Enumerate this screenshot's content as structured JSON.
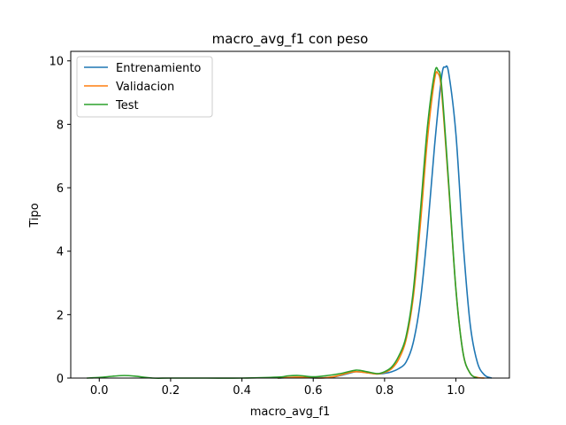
{
  "chart_data": {
    "type": "line",
    "title": "macro_avg_f1 con peso",
    "xlabel": "macro_avg_f1",
    "ylabel": "Tipo",
    "xlim": [
      -0.08,
      1.15
    ],
    "ylim": [
      0,
      10.3
    ],
    "xticks": [
      0.0,
      0.2,
      0.4,
      0.6,
      0.8,
      1.0
    ],
    "xtick_labels": [
      "0.0",
      "0.2",
      "0.4",
      "0.6",
      "0.8",
      "1.0"
    ],
    "yticks": [
      0,
      2,
      4,
      6,
      8,
      10
    ],
    "ytick_labels": [
      "0",
      "2",
      "4",
      "6",
      "8",
      "10"
    ],
    "grid": false,
    "legend_position": "top-left",
    "series": [
      {
        "name": "Entrenamiento",
        "color": "#1f77b4",
        "x": [
          0.5,
          0.56,
          0.62,
          0.66,
          0.7,
          0.72,
          0.75,
          0.78,
          0.8,
          0.82,
          0.84,
          0.86,
          0.88,
          0.9,
          0.92,
          0.94,
          0.96,
          0.97,
          0.98,
          1.0,
          1.02,
          1.04,
          1.06,
          1.08,
          1.1
        ],
        "y": [
          0.0,
          0.02,
          0.0,
          0.04,
          0.15,
          0.2,
          0.17,
          0.13,
          0.15,
          0.2,
          0.3,
          0.5,
          1.1,
          2.4,
          4.6,
          7.3,
          9.5,
          9.8,
          9.6,
          7.7,
          4.3,
          1.7,
          0.5,
          0.1,
          0.0
        ]
      },
      {
        "name": "Validacion",
        "color": "#ff7f0e",
        "x": [
          0.5,
          0.56,
          0.62,
          0.66,
          0.7,
          0.72,
          0.75,
          0.78,
          0.8,
          0.82,
          0.84,
          0.86,
          0.88,
          0.9,
          0.92,
          0.94,
          0.95,
          0.96,
          0.98,
          1.0,
          1.02,
          1.04,
          1.06,
          1.08
        ],
        "y": [
          0.0,
          0.03,
          0.0,
          0.05,
          0.17,
          0.2,
          0.17,
          0.13,
          0.18,
          0.3,
          0.6,
          1.2,
          2.5,
          4.8,
          7.5,
          9.4,
          9.6,
          9.0,
          6.0,
          2.8,
          0.8,
          0.15,
          0.02,
          0.0
        ]
      },
      {
        "name": "Test",
        "color": "#2ca02c",
        "x": [
          -0.035,
          0.0,
          0.04,
          0.07,
          0.1,
          0.15,
          0.2,
          0.3,
          0.4,
          0.5,
          0.53,
          0.56,
          0.6,
          0.64,
          0.68,
          0.72,
          0.75,
          0.78,
          0.8,
          0.82,
          0.84,
          0.86,
          0.88,
          0.9,
          0.92,
          0.94,
          0.95,
          0.96,
          0.98,
          1.0,
          1.02,
          1.04,
          1.06
        ],
        "y": [
          0.0,
          0.02,
          0.06,
          0.08,
          0.06,
          0.0,
          0.0,
          0.0,
          0.0,
          0.03,
          0.07,
          0.08,
          0.04,
          0.08,
          0.15,
          0.25,
          0.2,
          0.14,
          0.2,
          0.35,
          0.7,
          1.3,
          2.7,
          5.2,
          7.9,
          9.6,
          9.7,
          9.2,
          6.1,
          2.8,
          0.8,
          0.15,
          0.0
        ]
      }
    ]
  }
}
